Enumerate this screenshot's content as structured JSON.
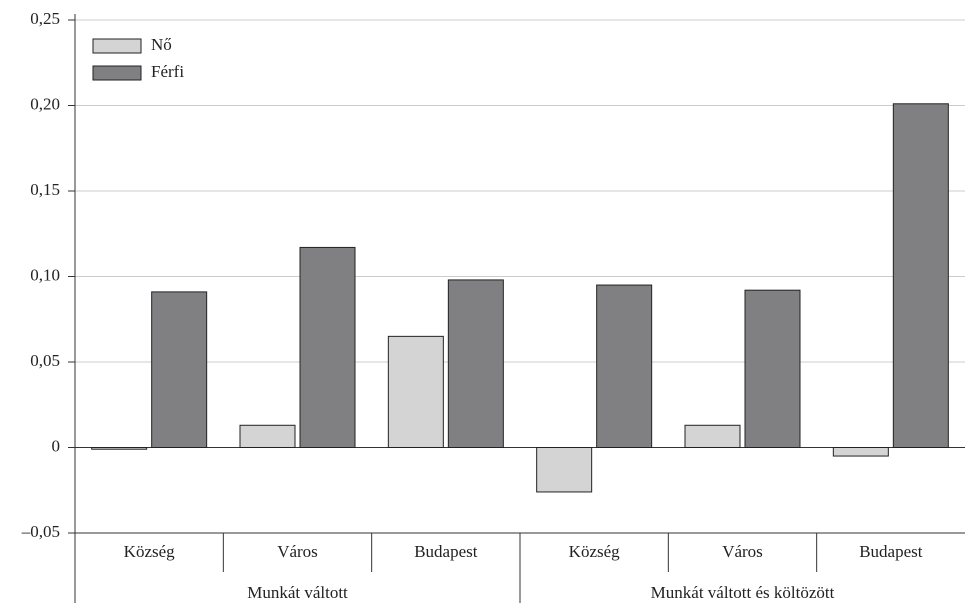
{
  "chart_data": {
    "type": "bar",
    "groups": [
      {
        "name": "Munkát váltott",
        "categories": [
          "Község",
          "Város",
          "Budapest"
        ]
      },
      {
        "name": "Munkát váltott és költözött",
        "categories": [
          "Község",
          "Város",
          "Budapest"
        ]
      }
    ],
    "series": [
      {
        "name": "Nő",
        "color": "#d4d4d4",
        "values": [
          -0.001,
          0.013,
          0.065,
          -0.026,
          0.013,
          -0.005
        ]
      },
      {
        "name": "Férfi",
        "color": "#808083",
        "values": [
          0.091,
          0.117,
          0.098,
          0.095,
          0.092,
          0.201
        ]
      }
    ],
    "ylim": [
      -0.05,
      0.25
    ],
    "yticks": [
      {
        "value": -0.05,
        "label": "–0,05"
      },
      0,
      {
        "value": 0.05,
        "label": "0,05"
      },
      {
        "value": 0.1,
        "label": "0,10"
      },
      {
        "value": 0.15,
        "label": "0,15"
      },
      {
        "value": 0.2,
        "label": "0,20"
      },
      {
        "value": 0.25,
        "label": "0,25"
      }
    ],
    "grid": true,
    "legend": "upper left"
  }
}
